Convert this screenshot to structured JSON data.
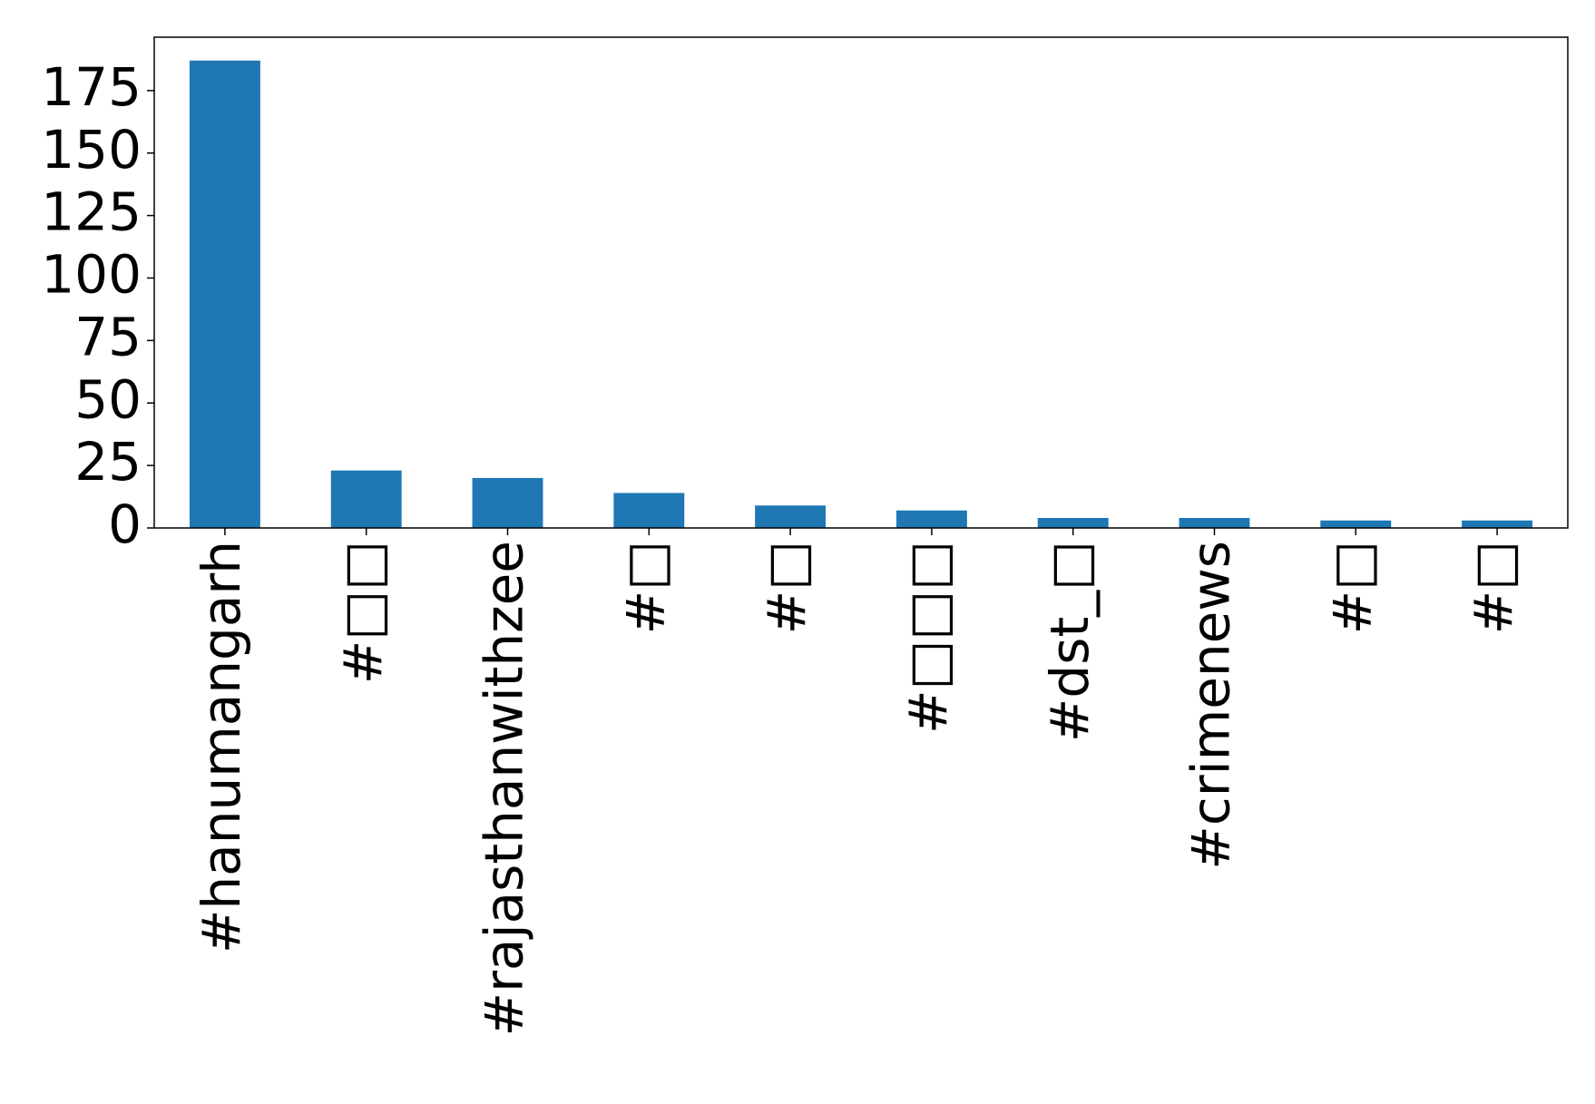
{
  "chart_data": {
    "type": "bar",
    "categories": [
      "#hanumangarh",
      "#□□",
      "#rajasthanwithzee",
      "#□",
      "#□",
      "#□□□",
      "#dst_□",
      "#crimenews",
      "#□",
      "#□"
    ],
    "values": [
      187,
      23,
      20,
      14,
      9,
      7,
      4,
      4,
      3,
      3
    ],
    "color": "#1f77b4",
    "ylim": [
      0,
      196.35
    ],
    "yticks": [
      0,
      25,
      50,
      75,
      100,
      125,
      150,
      175
    ],
    "grid": false
  }
}
